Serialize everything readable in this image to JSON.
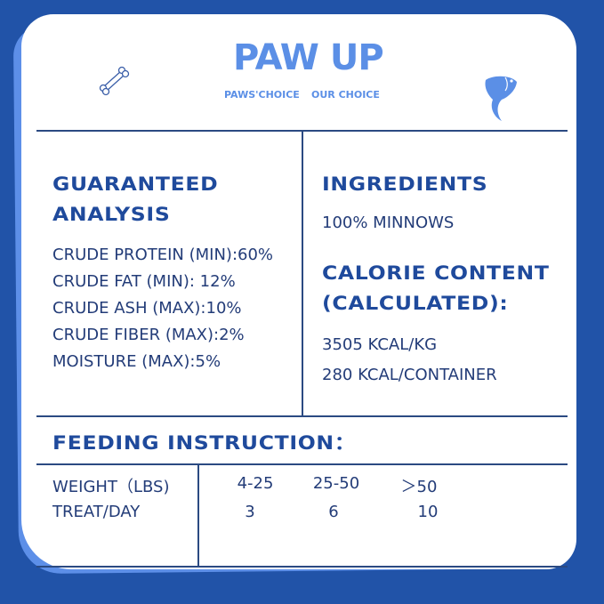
{
  "brand": {
    "logo": "PAW UP",
    "tagline_left": "PAWS'CHOICE",
    "tagline_right": "OUR CHOICE"
  },
  "colors": {
    "background": "#2153a8",
    "accent": "#5b8fe6",
    "text": "#1f3f86"
  },
  "icons": [
    "bone-icon",
    "fish-icon"
  ],
  "guaranteed_analysis": {
    "title_line1": "GUARANTEED",
    "title_line2": "ANALYSIS",
    "items": [
      "CRUDE PROTEIN (MIN):60%",
      "CRUDE FAT (MIN): 12%",
      "CRUDE ASH (MAX):10%",
      "CRUDE FIBER (MAX):2%",
      "MOISTURE (MAX):5%"
    ]
  },
  "ingredients": {
    "title": "INGREDIENTS",
    "value": "100% MINNOWS"
  },
  "calorie_content": {
    "title_line1": "CALORIE CONTENT",
    "title_line2": "(CALCULATED):",
    "values": [
      "3505 KCAL/KG",
      "280 KCAL/CONTAINER"
    ]
  },
  "feeding": {
    "title": "FEEDING INSTRUCTION：",
    "rows": [
      {
        "label": "WEIGHT（LBS)",
        "values": [
          "4-25",
          "25-50",
          "＞50"
        ]
      },
      {
        "label": "TREAT/DAY",
        "values": [
          "3",
          "6",
          "10"
        ]
      }
    ]
  }
}
